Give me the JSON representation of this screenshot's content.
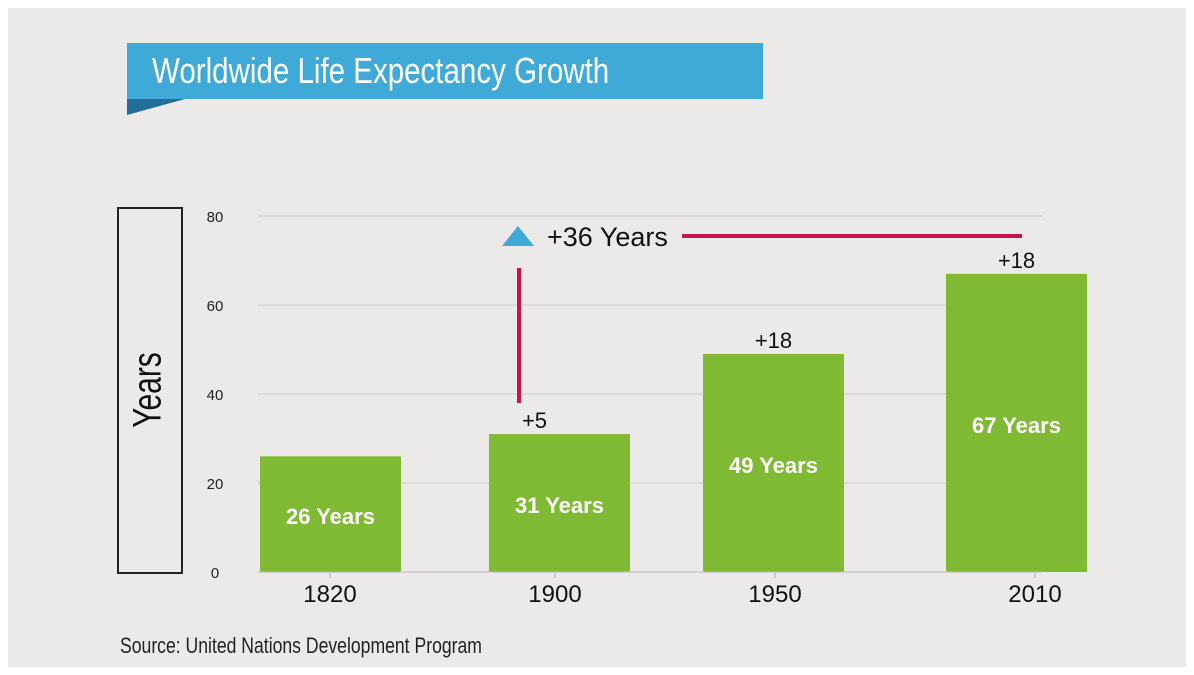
{
  "chart_data": {
    "type": "bar",
    "title": "Worldwide Life Expectancy Growth",
    "ylabel": "Years",
    "xlabel": "",
    "categories": [
      "1820",
      "1900",
      "1950",
      "2010"
    ],
    "values": [
      26,
      31,
      49,
      67
    ],
    "bar_labels": [
      "26 Years",
      "31 Years",
      "49 Years",
      "67 Years"
    ],
    "increase_labels": [
      "",
      "+5",
      "+18",
      "+18"
    ],
    "ylim": [
      0,
      80
    ],
    "yticks": [
      "0",
      "20",
      "40",
      "60",
      "80"
    ],
    "grid": true,
    "annotation": "+36 Years",
    "source": "Source: United Nations Development Program",
    "colors": {
      "bar": "#80b934",
      "banner": "#3fa9d8",
      "bracket": "#c8124f",
      "triangle": "#3fa9d8"
    }
  }
}
